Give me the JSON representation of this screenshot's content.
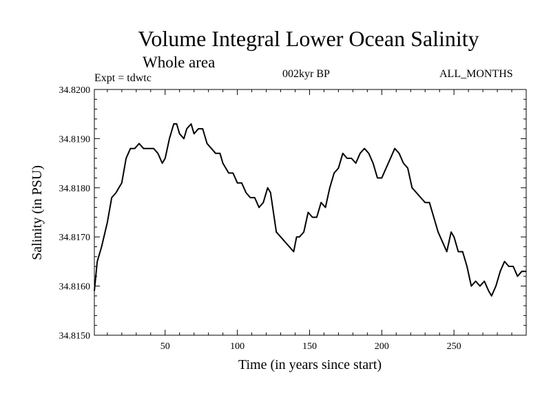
{
  "header": {
    "title": "Volume Integral Lower Ocean Salinity",
    "subtitle": "Whole area",
    "experiment": "Expt = tdwtc",
    "period": "002kyr BP",
    "months": "ALL_MONTHS"
  },
  "chart_data": {
    "type": "line",
    "title": "Volume Integral Lower Ocean Salinity",
    "subtitle": "Whole area",
    "xlabel": "Time (in years since start)",
    "ylabel": "Salinity (in PSU)",
    "xlim": [
      1,
      300
    ],
    "ylim": [
      34.815,
      34.82
    ],
    "xticks": [
      50,
      100,
      150,
      200,
      250
    ],
    "xtick_labels": [
      "50",
      "100",
      "150",
      "200",
      "250"
    ],
    "yticks": [
      34.815,
      34.816,
      34.817,
      34.818,
      34.819,
      34.82
    ],
    "ytick_labels": [
      "34.8150",
      "34.8160",
      "34.8170",
      "34.8180",
      "34.8190",
      "34.8200"
    ],
    "grid": false,
    "series": [
      {
        "name": "Salinity",
        "color": "#000000",
        "x": [
          1,
          3,
          6,
          10,
          13,
          16,
          18,
          20,
          23,
          26,
          29,
          32,
          35,
          39,
          42,
          45,
          48,
          50,
          53,
          56,
          58,
          60,
          63,
          65,
          68,
          70,
          73,
          76,
          79,
          82,
          85,
          88,
          90,
          94,
          97,
          100,
          103,
          106,
          109,
          112,
          115,
          118,
          121,
          123,
          125,
          127,
          130,
          133,
          136,
          139,
          141,
          143,
          146,
          149,
          152,
          155,
          158,
          161,
          164,
          167,
          170,
          173,
          176,
          179,
          182,
          185,
          188,
          191,
          194,
          197,
          200,
          203,
          206,
          209,
          212,
          215,
          218,
          221,
          224,
          227,
          230,
          233,
          236,
          239,
          242,
          245,
          248,
          250,
          253,
          256,
          259,
          262,
          265,
          268,
          271,
          274,
          276,
          279,
          282,
          285,
          288,
          291,
          294,
          297,
          300
        ],
        "y": [
          34.8159,
          34.8165,
          34.8168,
          34.8173,
          34.8178,
          34.8179,
          34.818,
          34.8181,
          34.8186,
          34.8188,
          34.8188,
          34.8189,
          34.8188,
          34.8188,
          34.8188,
          34.8187,
          34.8185,
          34.8186,
          34.819,
          34.8193,
          34.8193,
          34.8191,
          34.819,
          34.8192,
          34.8193,
          34.8191,
          34.8192,
          34.8192,
          34.8189,
          34.8188,
          34.8187,
          34.8187,
          34.8185,
          34.8183,
          34.8183,
          34.8181,
          34.8181,
          34.8179,
          34.8178,
          34.8178,
          34.8176,
          34.8177,
          34.818,
          34.8179,
          34.8175,
          34.8171,
          34.817,
          34.8169,
          34.8168,
          34.8167,
          34.817,
          34.817,
          34.8171,
          34.8175,
          34.8174,
          34.8174,
          34.8177,
          34.8176,
          34.818,
          34.8183,
          34.8184,
          34.8187,
          34.8186,
          34.8186,
          34.8185,
          34.8187,
          34.8188,
          34.8187,
          34.8185,
          34.8182,
          34.8182,
          34.8184,
          34.8186,
          34.8188,
          34.8187,
          34.8185,
          34.8184,
          34.818,
          34.8179,
          34.8178,
          34.8177,
          34.8177,
          34.8174,
          34.8171,
          34.8169,
          34.8167,
          34.8171,
          34.817,
          34.8167,
          34.8167,
          34.8164,
          34.816,
          34.8161,
          34.816,
          34.8161,
          34.8159,
          34.8158,
          34.816,
          34.8163,
          34.8165,
          34.8164,
          34.8164,
          34.8162,
          34.8163,
          34.8163
        ]
      }
    ]
  }
}
